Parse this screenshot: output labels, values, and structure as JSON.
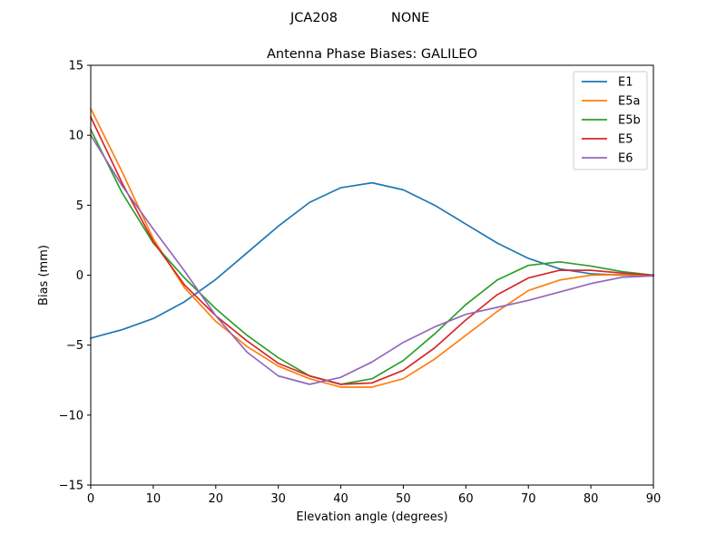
{
  "figure": {
    "suptitle_left": "JCA208",
    "suptitle_right": "NONE"
  },
  "chart_data": {
    "type": "line",
    "title": "Antenna Phase Biases: GALILEO",
    "xlabel": "Elevation angle (degrees)",
    "ylabel": "Bias (mm)",
    "xlim": [
      0,
      90
    ],
    "ylim": [
      -15,
      15
    ],
    "xticks": [
      0,
      10,
      20,
      30,
      40,
      50,
      60,
      70,
      80,
      90
    ],
    "yticks": [
      -15,
      -10,
      -5,
      0,
      5,
      10,
      15
    ],
    "xtick_labels": [
      "0",
      "10",
      "20",
      "30",
      "40",
      "50",
      "60",
      "70",
      "80",
      "90"
    ],
    "ytick_labels": [
      "−15",
      "−10",
      "−5",
      "0",
      "5",
      "10",
      "15"
    ],
    "grid": false,
    "legend_position": "top-right",
    "x": [
      0,
      5,
      10,
      15,
      20,
      25,
      30,
      35,
      40,
      45,
      50,
      55,
      60,
      65,
      70,
      75,
      80,
      85,
      90
    ],
    "series": [
      {
        "name": "E1",
        "color": "#1f77b4",
        "values": [
          -4.5,
          -3.9,
          -3.1,
          -1.9,
          -0.3,
          1.6,
          3.5,
          5.2,
          6.25,
          6.6,
          6.1,
          5.0,
          3.65,
          2.3,
          1.2,
          0.45,
          0.1,
          0.0,
          0.0
        ]
      },
      {
        "name": "E5a",
        "color": "#ff7f0e",
        "values": [
          11.9,
          7.4,
          2.6,
          -0.9,
          -3.3,
          -5.1,
          -6.5,
          -7.4,
          -8.0,
          -8.0,
          -7.4,
          -6.0,
          -4.3,
          -2.6,
          -1.1,
          -0.35,
          0.0,
          0.05,
          0.0
        ]
      },
      {
        "name": "E5b",
        "color": "#2ca02c",
        "values": [
          10.4,
          5.9,
          2.3,
          -0.2,
          -2.4,
          -4.3,
          -5.9,
          -7.2,
          -7.8,
          -7.4,
          -6.1,
          -4.2,
          -2.1,
          -0.35,
          0.7,
          0.95,
          0.65,
          0.25,
          0.0
        ]
      },
      {
        "name": "E5",
        "color": "#d62728",
        "values": [
          11.3,
          6.6,
          2.4,
          -0.7,
          -2.9,
          -4.7,
          -6.3,
          -7.2,
          -7.8,
          -7.7,
          -6.8,
          -5.2,
          -3.2,
          -1.4,
          -0.2,
          0.35,
          0.35,
          0.15,
          0.0
        ]
      },
      {
        "name": "E6",
        "color": "#9467bd",
        "values": [
          10.0,
          6.4,
          3.3,
          0.3,
          -2.9,
          -5.5,
          -7.2,
          -7.8,
          -7.3,
          -6.2,
          -4.8,
          -3.7,
          -2.8,
          -2.3,
          -1.8,
          -1.2,
          -0.6,
          -0.15,
          -0.05
        ]
      }
    ]
  }
}
